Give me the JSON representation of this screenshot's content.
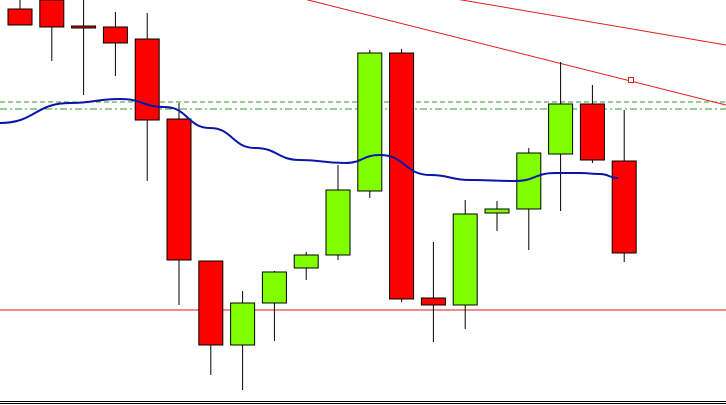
{
  "chart_data": {
    "type": "candlestick",
    "title": "",
    "xlabel": "",
    "ylabel": "",
    "ylim": [
      0,
      405
    ],
    "grid": false,
    "legend": "none",
    "colors": {
      "background": "#ffffff",
      "bull": "#80ff00",
      "bear": "#ff0000",
      "wick": "#000000",
      "moving_average": "#0a16a8",
      "trendline": "#e31a1a",
      "support": "#e31a1a",
      "level": "#2f9a2f",
      "frame": "#000000"
    },
    "candles": [
      {
        "i": 0,
        "open": 396,
        "high": 405,
        "low": 380,
        "close": 380
      },
      {
        "i": 1,
        "open": 405,
        "high": 405,
        "low": 344,
        "close": 378
      },
      {
        "i": 2,
        "open": 379,
        "high": 405,
        "low": 310,
        "close": 378
      },
      {
        "i": 3,
        "open": 378,
        "high": 393,
        "low": 329,
        "close": 362
      },
      {
        "i": 4,
        "open": 366,
        "high": 392,
        "low": 224,
        "close": 285
      },
      {
        "i": 5,
        "open": 286,
        "high": 302,
        "low": 100,
        "close": 145
      },
      {
        "i": 6,
        "open": 144,
        "high": 144,
        "low": 30,
        "close": 60
      },
      {
        "i": 7,
        "open": 60,
        "high": 114,
        "low": 15,
        "close": 102
      },
      {
        "i": 8,
        "open": 102,
        "high": 134,
        "low": 64,
        "close": 133
      },
      {
        "i": 9,
        "open": 137,
        "high": 153,
        "low": 125,
        "close": 150
      },
      {
        "i": 10,
        "open": 150,
        "high": 240,
        "low": 145,
        "close": 215
      },
      {
        "i": 11,
        "open": 214,
        "high": 355,
        "low": 207,
        "close": 352
      },
      {
        "i": 12,
        "open": 352,
        "high": 356,
        "low": 103,
        "close": 106
      },
      {
        "i": 13,
        "open": 107,
        "high": 163,
        "low": 63,
        "close": 100
      },
      {
        "i": 14,
        "open": 100,
        "high": 205,
        "low": 76,
        "close": 191
      },
      {
        "i": 15,
        "open": 192,
        "high": 204,
        "low": 174,
        "close": 196
      },
      {
        "i": 16,
        "open": 196,
        "high": 257,
        "low": 155,
        "close": 252
      },
      {
        "i": 17,
        "open": 251,
        "high": 343,
        "low": 194,
        "close": 301
      },
      {
        "i": 18,
        "open": 301,
        "high": 320,
        "low": 242,
        "close": 245
      },
      {
        "i": 19,
        "open": 244,
        "high": 295,
        "low": 143,
        "close": 152
      }
    ],
    "moving_average": [
      [
        0,
        282
      ],
      [
        70,
        302
      ],
      [
        120,
        306
      ],
      [
        165,
        298
      ],
      [
        210,
        277
      ],
      [
        255,
        257
      ],
      [
        300,
        245
      ],
      [
        345,
        242
      ],
      [
        380,
        250
      ],
      [
        430,
        230
      ],
      [
        470,
        225
      ],
      [
        515,
        224
      ],
      [
        555,
        232
      ],
      [
        580,
        232
      ],
      [
        600,
        231
      ],
      [
        618,
        227
      ]
    ],
    "trendlines": [
      {
        "from": [
          300,
          407
        ],
        "to": [
          726,
          300
        ]
      },
      {
        "from": [
          450,
          407
        ],
        "to": [
          726,
          360
        ]
      }
    ],
    "support_line": 95,
    "dashed_levels": [
      303,
      296
    ],
    "trendline_marker": [
      631,
      325
    ]
  }
}
